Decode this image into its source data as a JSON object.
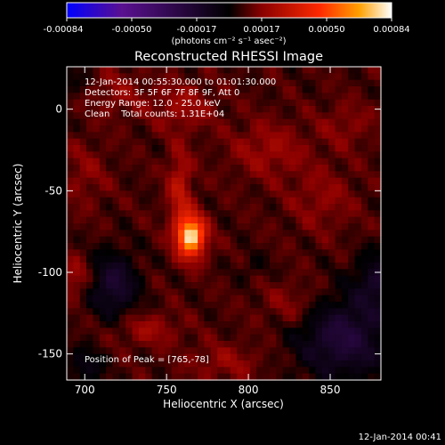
{
  "chart_data": {
    "type": "heatmap",
    "title": "Reconstructed RHESSI Image",
    "xlabel": "Heliocentric X (arcsec)",
    "ylabel": "Heliocentric Y (arcsec)",
    "xlim": [
      689,
      881
    ],
    "ylim": [
      -166,
      26
    ],
    "xticks": [
      700,
      750,
      800,
      850
    ],
    "yticks": [
      0,
      -50,
      -100,
      -150
    ],
    "colorbar": {
      "ticks": [
        "-0.00084",
        "-0.00050",
        "-0.00017",
        "0.00017",
        "0.00050",
        "0.00084"
      ],
      "range": [
        -0.00084,
        0.00084
      ],
      "units_label": "(photons cm⁻² s⁻¹ asec⁻²)",
      "colormap": [
        "#0000ff",
        "#5a1090",
        "#000000",
        "#8a0000",
        "#ff2a00",
        "#ffa000",
        "#ffffff"
      ]
    },
    "annotations": [
      "12-Jan-2014 00:55:30.000 to 01:01:30.000",
      "Detectors: 3F 5F 6F 7F 8F 9F, Att 0",
      "Energy Range: 12.0 - 25.0 keV",
      "Clean    Total counts: 1.31E+04"
    ],
    "peak": {
      "label": "Position of Peak = [765,-78]",
      "x": 765,
      "y": -78,
      "value": 0.00084
    },
    "features": [
      {
        "x": 765,
        "y": -78,
        "sx": 6,
        "sy": 9,
        "v": 0.00066
      },
      {
        "x": 758,
        "y": -50,
        "sx": 5,
        "sy": 18,
        "v": 0.0002
      },
      {
        "x": 760,
        "y": 2,
        "sx": 14,
        "sy": 10,
        "v": 0.00012
      },
      {
        "x": 812,
        "y": -25,
        "sx": 16,
        "sy": 12,
        "v": 0.00012
      },
      {
        "x": 845,
        "y": -55,
        "sx": 14,
        "sy": 14,
        "v": 9e-05
      },
      {
        "x": 700,
        "y": -40,
        "sx": 10,
        "sy": 14,
        "v": 8e-05
      },
      {
        "x": 694,
        "y": -103,
        "sx": 6,
        "sy": 7,
        "v": 0.00015
      },
      {
        "x": 738,
        "y": -135,
        "sx": 14,
        "sy": 7,
        "v": 0.00012
      },
      {
        "x": 828,
        "y": -120,
        "sx": 14,
        "sy": 10,
        "v": 0.0001
      },
      {
        "x": 786,
        "y": -155,
        "sx": 16,
        "sy": 8,
        "v": 0.0001
      },
      {
        "x": 720,
        "y": 10,
        "sx": 12,
        "sy": 10,
        "v": 9e-05
      },
      {
        "x": 860,
        "y": -10,
        "sx": 12,
        "sy": 10,
        "v": 8e-05
      },
      {
        "x": 718,
        "y": -108,
        "sx": 10,
        "sy": 14,
        "v": -0.00025
      },
      {
        "x": 858,
        "y": -140,
        "sx": 20,
        "sy": 18,
        "v": -0.00028
      },
      {
        "x": 880,
        "y": -105,
        "sx": 10,
        "sy": 12,
        "v": -0.0002
      },
      {
        "x": 700,
        "y": -158,
        "sx": 8,
        "sy": 8,
        "v": -0.00015
      },
      {
        "x": 803,
        "y": -97,
        "sx": 7,
        "sy": 6,
        "v": -6e-05
      },
      {
        "x": 690,
        "y": 18,
        "sx": 8,
        "sy": 8,
        "v": -8e-05
      }
    ],
    "background": 8e-05
  },
  "footer_timestamp": "12-Jan-2014 00:41"
}
